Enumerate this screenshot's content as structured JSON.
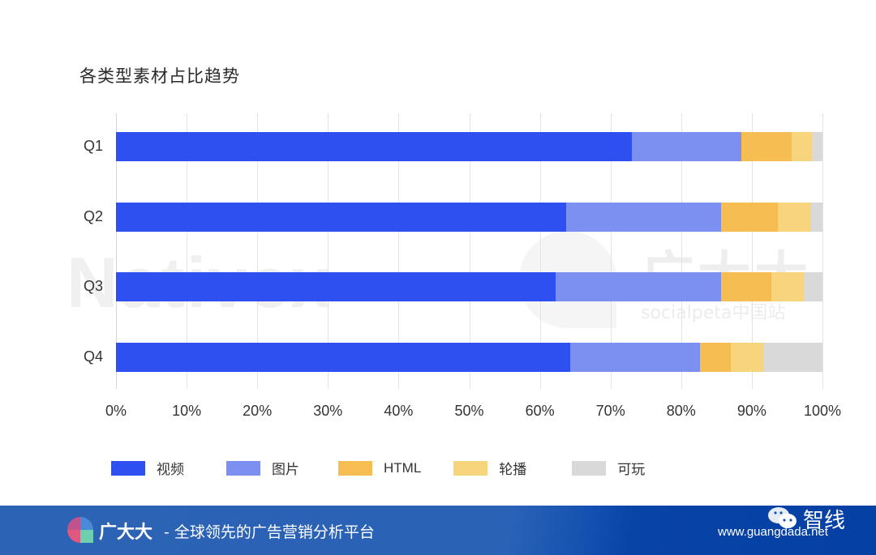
{
  "chart_data": {
    "type": "bar",
    "orientation": "horizontal",
    "stacked": true,
    "percent": true,
    "title": "各类型素材占比趋势",
    "xlabel": "",
    "ylabel": "",
    "xlim": [
      0,
      100
    ],
    "grid": true,
    "legend_position": "bottom",
    "categories": [
      "Q1",
      "Q2",
      "Q3",
      "Q4"
    ],
    "x_ticks": [
      "0%",
      "10%",
      "20%",
      "30%",
      "40%",
      "50%",
      "60%",
      "70%",
      "80%",
      "90%",
      "100%"
    ],
    "series": [
      {
        "name": "视频",
        "color": "#2f50f0",
        "values": [
          73.0,
          63.7,
          62.2,
          64.3
        ]
      },
      {
        "name": "图片",
        "color": "#7b90f1",
        "values": [
          15.5,
          21.9,
          23.4,
          18.4
        ]
      },
      {
        "name": "HTML",
        "color": "#f5bd52",
        "values": [
          7.1,
          8.1,
          7.2,
          4.3
        ]
      },
      {
        "name": "轮播",
        "color": "#f8d57c",
        "values": [
          2.9,
          4.7,
          4.6,
          4.7
        ]
      },
      {
        "name": "可玩",
        "color": "#d9d9da",
        "values": [
          1.5,
          1.6,
          2.6,
          8.3
        ]
      }
    ]
  },
  "watermark": {
    "left": "Nativex",
    "cross": "×",
    "right": "广大大",
    "right_sub": "socialpeta中国站"
  },
  "footer": {
    "brand": "广大大",
    "slogan": "- 全球领先的广告营销分析平台",
    "url": "www.guangdada.net",
    "account": "智线"
  }
}
